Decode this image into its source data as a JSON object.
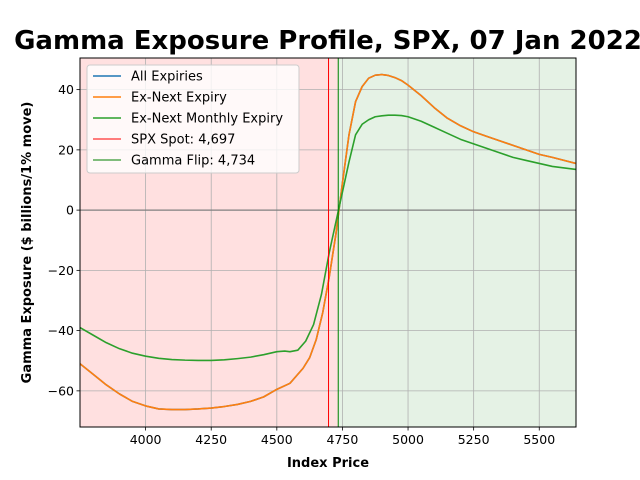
{
  "chart_data": {
    "type": "line",
    "title": "Gamma Exposure Profile, SPX, 07 Jan 2022",
    "xlabel": "Index Price",
    "ylabel": "Gamma Exposure ($ billions/1% move)",
    "xlim": [
      3750,
      5640
    ],
    "ylim": [
      -72,
      50.5
    ],
    "xticks": [
      4000,
      4250,
      4500,
      4750,
      5000,
      5250,
      5500
    ],
    "yticks": [
      -60,
      -40,
      -20,
      0,
      20,
      40
    ],
    "grid": true,
    "legend_position": "upper-left",
    "zero_line_color": "#808080",
    "regions": [
      {
        "from": 3750,
        "to": 4734,
        "color": "#ff0000",
        "opacity": 0.12
      },
      {
        "from": 4734,
        "to": 5640,
        "color": "#008000",
        "opacity": 0.1
      }
    ],
    "series": [
      {
        "name": "All Expiries",
        "kind": "line",
        "color": "#1f77b4",
        "x": [
          3750,
          3800,
          3850,
          3900,
          3950,
          4000,
          4050,
          4100,
          4150,
          4200,
          4250,
          4300,
          4350,
          4400,
          4450,
          4500,
          4550,
          4600,
          4625,
          4650,
          4675,
          4700,
          4725,
          4750,
          4775,
          4800,
          4825,
          4850,
          4875,
          4900,
          4925,
          4950,
          4975,
          5000,
          5050,
          5100,
          5150,
          5200,
          5250,
          5300,
          5350,
          5400,
          5450,
          5500,
          5550,
          5640
        ],
        "y": [
          -51,
          -54.5,
          -58,
          -61,
          -63.5,
          -65,
          -66,
          -66.2,
          -66.2,
          -66,
          -65.7,
          -65.2,
          -64.5,
          -63.5,
          -62,
          -59.5,
          -57.5,
          -52.5,
          -49,
          -43,
          -34,
          -22,
          -8,
          9,
          25,
          36,
          41,
          43.8,
          44.8,
          45,
          44.7,
          44,
          43,
          41.5,
          38,
          34,
          30.5,
          28,
          26,
          24.5,
          23,
          21.5,
          20,
          18.5,
          17.5,
          15.5
        ]
      },
      {
        "name": "Ex-Next Expiry",
        "kind": "line",
        "color": "#ff7f0e",
        "x": [
          3750,
          3800,
          3850,
          3900,
          3950,
          4000,
          4050,
          4100,
          4150,
          4200,
          4250,
          4300,
          4350,
          4400,
          4450,
          4500,
          4550,
          4600,
          4625,
          4650,
          4675,
          4700,
          4725,
          4750,
          4775,
          4800,
          4825,
          4850,
          4875,
          4900,
          4925,
          4950,
          4975,
          5000,
          5050,
          5100,
          5150,
          5200,
          5250,
          5300,
          5350,
          5400,
          5450,
          5500,
          5550,
          5640
        ],
        "y": [
          -51,
          -54.5,
          -58,
          -61,
          -63.5,
          -65,
          -66,
          -66.2,
          -66.2,
          -66,
          -65.7,
          -65.2,
          -64.5,
          -63.5,
          -62,
          -59.5,
          -57.5,
          -52.5,
          -49,
          -43,
          -34,
          -22,
          -8,
          9,
          25,
          36,
          41,
          43.8,
          44.8,
          45,
          44.7,
          44,
          43,
          41.5,
          38,
          34,
          30.5,
          28,
          26,
          24.5,
          23,
          21.5,
          20,
          18.5,
          17.5,
          15.5
        ]
      },
      {
        "name": "Ex-Next Monthly Expiry",
        "kind": "line",
        "color": "#2ca02c",
        "x": [
          3750,
          3800,
          3850,
          3900,
          3950,
          4000,
          4050,
          4100,
          4150,
          4200,
          4250,
          4300,
          4350,
          4400,
          4450,
          4500,
          4530,
          4550,
          4580,
          4610,
          4640,
          4670,
          4700,
          4725,
          4750,
          4775,
          4800,
          4825,
          4850,
          4875,
          4900,
          4925,
          4950,
          4975,
          5000,
          5050,
          5100,
          5150,
          5200,
          5250,
          5300,
          5350,
          5400,
          5450,
          5500,
          5550,
          5640
        ],
        "y": [
          -39,
          -41.5,
          -44,
          -46,
          -47.5,
          -48.5,
          -49.2,
          -49.6,
          -49.8,
          -49.9,
          -49.9,
          -49.7,
          -49.3,
          -48.8,
          -48,
          -47,
          -46.8,
          -47,
          -46.5,
          -43.5,
          -38,
          -28,
          -14,
          -4,
          6,
          16,
          25,
          28.5,
          30,
          31,
          31.3,
          31.5,
          31.5,
          31.4,
          31,
          29.5,
          27.5,
          25.5,
          23.5,
          22,
          20.5,
          19,
          17.5,
          16.5,
          15.5,
          14.5,
          13.5
        ]
      },
      {
        "name": "SPX Spot: 4,697",
        "kind": "vline",
        "value": 4697,
        "color": "#ff0000"
      },
      {
        "name": "Gamma Flip: 4,734",
        "kind": "vline",
        "value": 4734,
        "color": "#008000"
      }
    ]
  }
}
